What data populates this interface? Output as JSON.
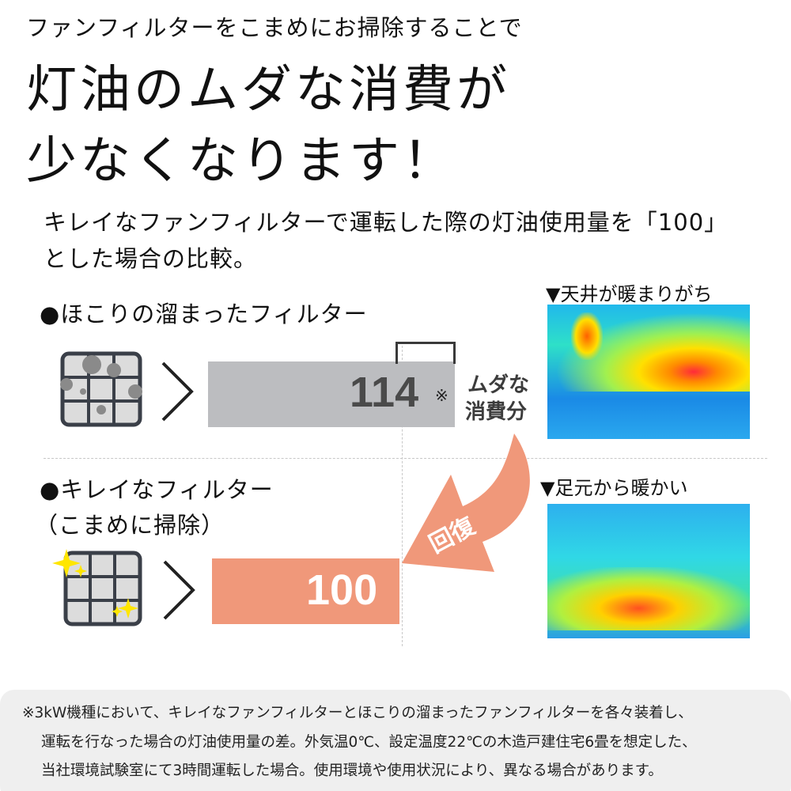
{
  "header": {
    "lead": "ファンフィルターをこまめにお掃除することで",
    "title_line1": "灯油のムダな消費が",
    "title_line2": "少なくなります！"
  },
  "intro": {
    "line1": "キレイなファンフィルターで運転した際の灯油使用量を「100」",
    "line2": "とした場合の比較。"
  },
  "dirty": {
    "label": "●ほこりの溜まったフィルター",
    "value": "114",
    "note_mark": "※",
    "waste_label_1": "ムダな",
    "waste_label_2": "消費分",
    "thermal_caption": "▼天井が暖まりがち"
  },
  "clean": {
    "label_1": "●キレイなフィルター",
    "label_2": "（こまめに掃除）",
    "value": "100",
    "thermal_caption": "▼足元から暖かい"
  },
  "arrow_label": "回復",
  "colors": {
    "dirty_bar": "#bcbdc0",
    "clean_bar": "#f0987a",
    "text_dark": "#4a4a4a"
  },
  "footnote": {
    "line1": "※3kW機種において、キレイなファンフィルターとほこりの溜まったファンフィルターを各々装着し、",
    "line2": "運転を行なった場合の灯油使用量の差。外気温0℃、設定温度22℃の木造戸建住宅6畳を想定した、",
    "line3": "当社環境試験室にて3時間運転した場合。使用環境や使用状況により、異なる場合があります。"
  }
}
